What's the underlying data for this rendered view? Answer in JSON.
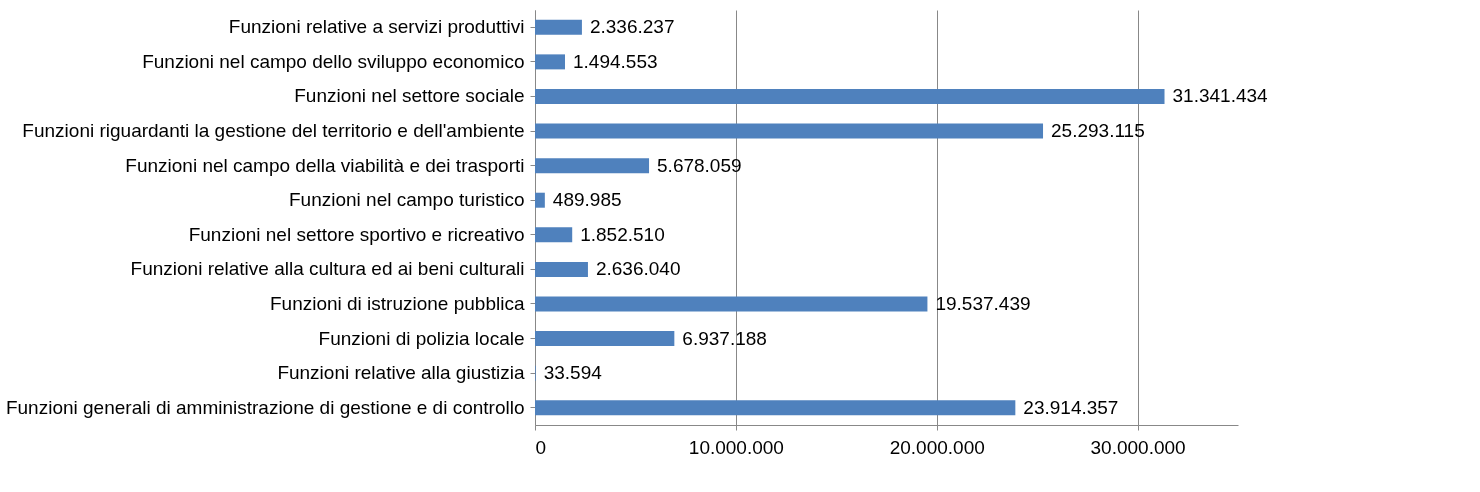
{
  "chart_data": {
    "type": "bar",
    "orientation": "horizontal",
    "categories": [
      "Funzioni relative a servizi produttivi",
      "Funzioni nel campo dello sviluppo economico",
      "Funzioni nel settore sociale",
      "Funzioni riguardanti la gestione del territorio e dell'ambiente",
      "Funzioni nel campo della viabilità e dei trasporti",
      "Funzioni nel campo turistico",
      "Funzioni nel settore sportivo e ricreativo",
      "Funzioni relative alla cultura ed ai beni culturali",
      "Funzioni di istruzione pubblica",
      "Funzioni di polizia locale",
      "Funzioni relative alla giustizia",
      "Funzioni generali di amministrazione di gestione e di controllo"
    ],
    "values": [
      2336237,
      1494553,
      31341434,
      25293115,
      5678059,
      489985,
      1852510,
      2636040,
      19537439,
      6937188,
      33594,
      23914357
    ],
    "value_labels": [
      "2.336.237",
      "1.494.553",
      "31.341.434",
      "25.293.115",
      "5.678.059",
      "489.985",
      "1.852.510",
      "2.636.040",
      "19.537.439",
      "6.937.188",
      "33.594",
      "23.914.357"
    ],
    "color": "#4f81bd",
    "xlim": [
      0,
      35000000
    ],
    "xticks": [
      0,
      {
        "value": 10000000,
        "label": "10.000.000"
      },
      {
        "value": 20000000,
        "label": "20.000.000"
      },
      {
        "value": 30000000,
        "label": "30.000.000"
      }
    ],
    "grid": "x"
  }
}
